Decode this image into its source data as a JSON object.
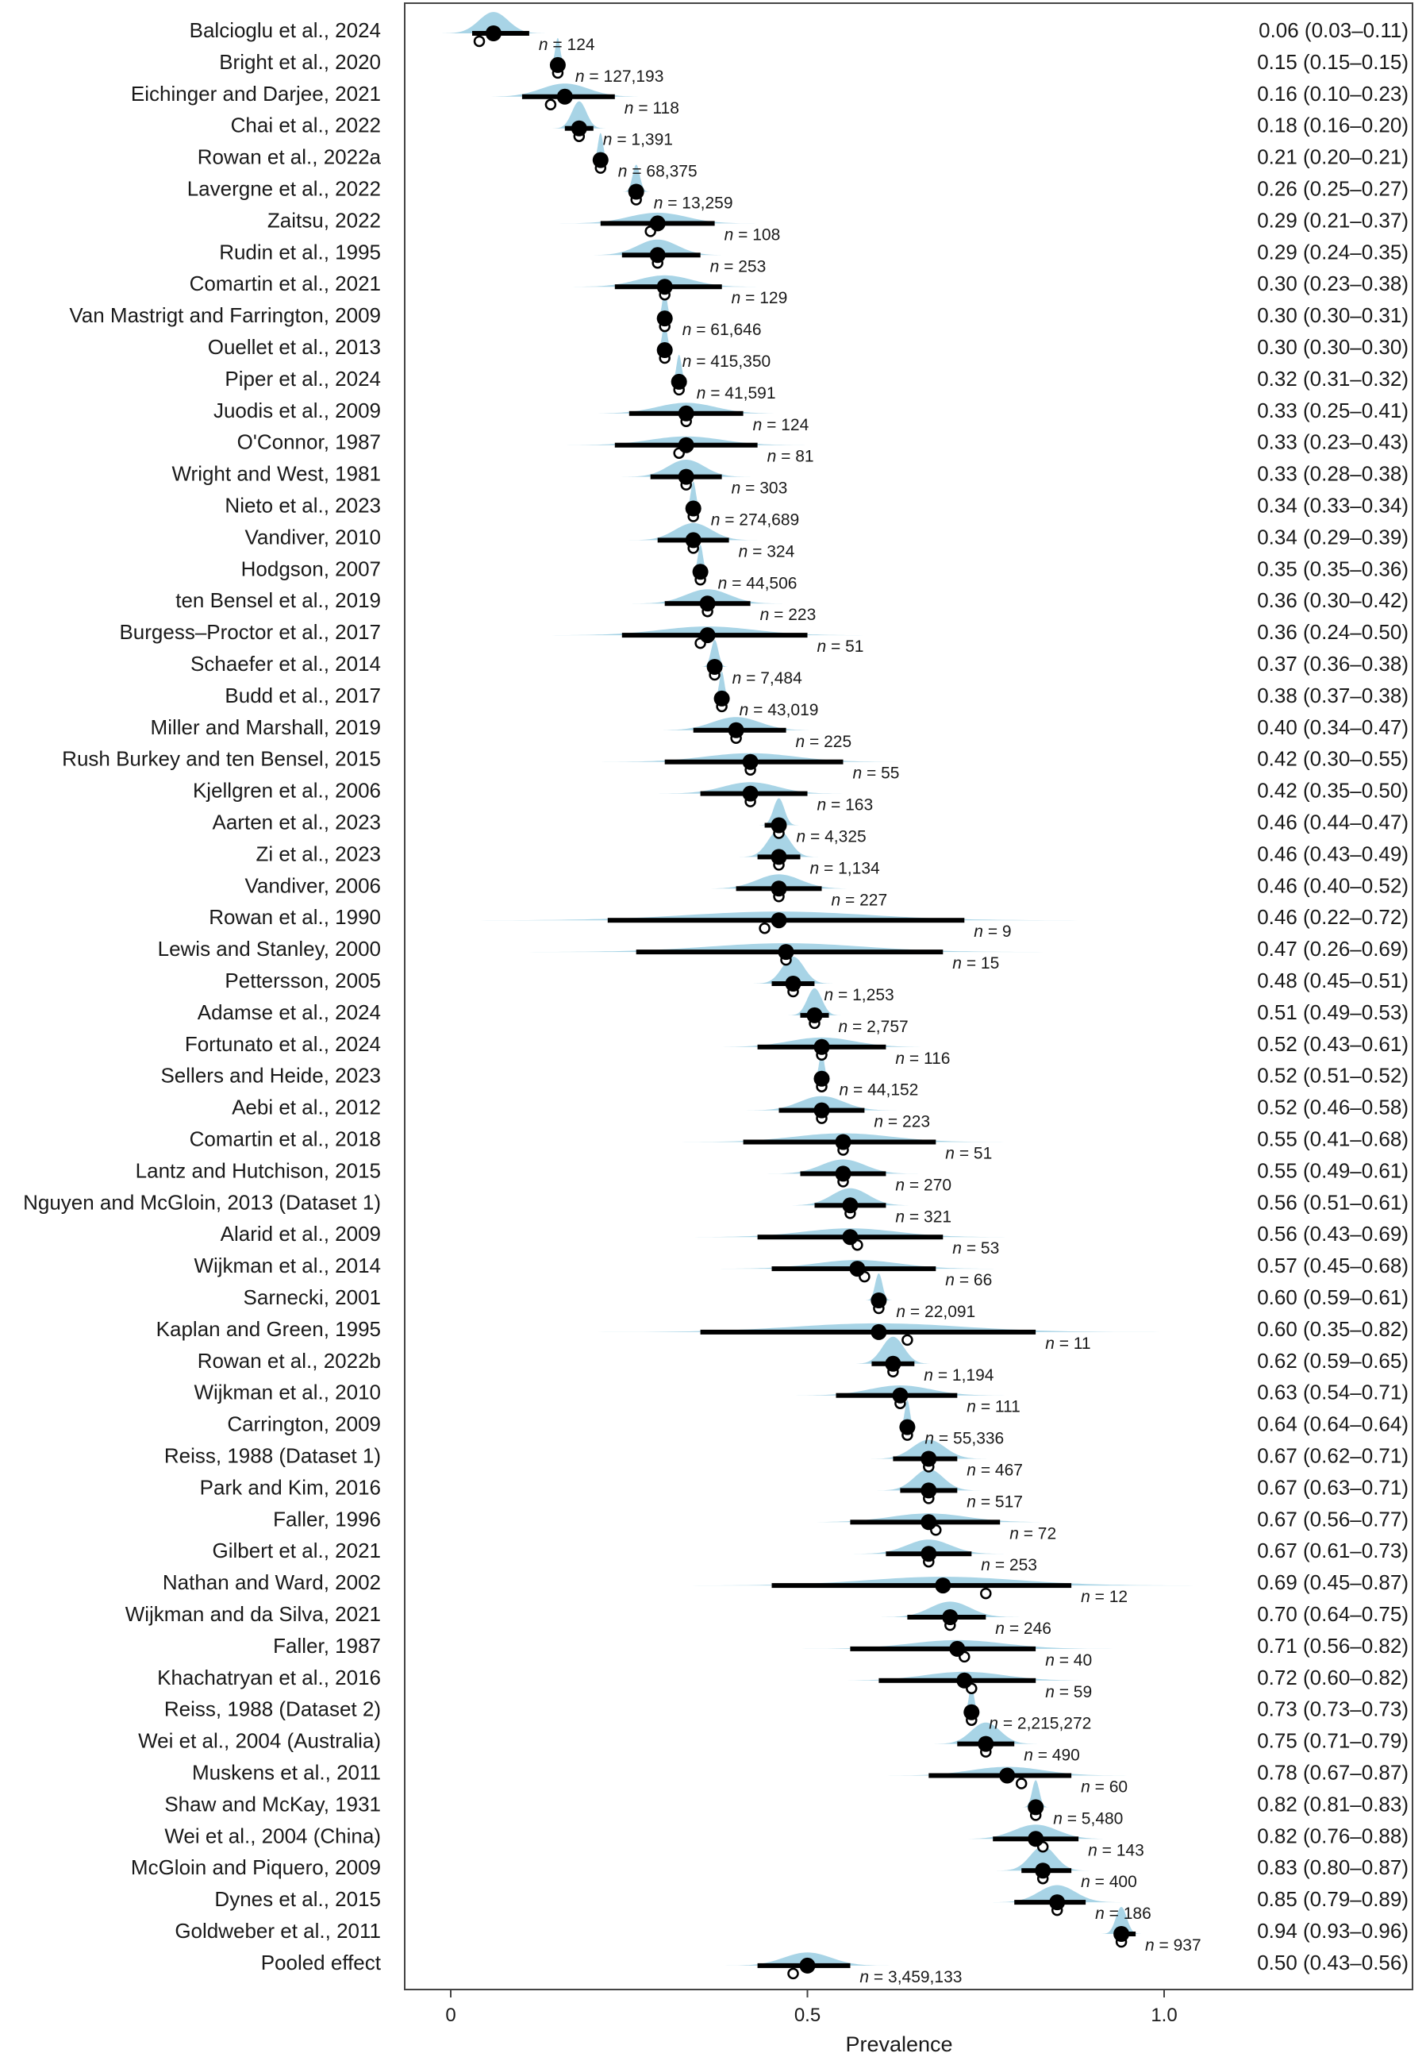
{
  "chart_data": {
    "type": "forest",
    "xlabel": "Prevalence",
    "xlim": [
      0,
      1
    ],
    "xticks": [
      {
        "value": 0,
        "label": "0"
      },
      {
        "value": 0.5,
        "label": "0.5"
      },
      {
        "value": 1.0,
        "label": "1.0"
      }
    ],
    "colors": {
      "density": "#a8d4e6",
      "interval": "#000000",
      "point": "#000000",
      "axis": "#444444"
    },
    "studies": [
      {
        "label": "Balcioglu et al., 2024",
        "estimate": 0.06,
        "lower": 0.03,
        "upper": 0.11,
        "observed": 0.04,
        "n_text": "n = 124",
        "ci_text": "0.06 (0.03–0.11)"
      },
      {
        "label": "Bright et al., 2020",
        "estimate": 0.15,
        "lower": 0.15,
        "upper": 0.15,
        "observed": 0.15,
        "n_text": "n = 127,193",
        "ci_text": "0.15 (0.15–0.15)"
      },
      {
        "label": "Eichinger and Darjee, 2021",
        "estimate": 0.16,
        "lower": 0.1,
        "upper": 0.23,
        "observed": 0.14,
        "n_text": "n = 118",
        "ci_text": "0.16 (0.10–0.23)"
      },
      {
        "label": "Chai et al., 2022",
        "estimate": 0.18,
        "lower": 0.16,
        "upper": 0.2,
        "observed": 0.18,
        "n_text": "n = 1,391",
        "ci_text": "0.18 (0.16–0.20)"
      },
      {
        "label": "Rowan et al., 2022a",
        "estimate": 0.21,
        "lower": 0.2,
        "upper": 0.21,
        "observed": 0.21,
        "n_text": "n = 68,375",
        "ci_text": "0.21 (0.20–0.21)"
      },
      {
        "label": "Lavergne et al., 2022",
        "estimate": 0.26,
        "lower": 0.25,
        "upper": 0.27,
        "observed": 0.26,
        "n_text": "n = 13,259",
        "ci_text": "0.26 (0.25–0.27)"
      },
      {
        "label": "Zaitsu, 2022",
        "estimate": 0.29,
        "lower": 0.21,
        "upper": 0.37,
        "observed": 0.28,
        "n_text": "n = 108",
        "ci_text": "0.29 (0.21–0.37)"
      },
      {
        "label": "Rudin et al., 1995",
        "estimate": 0.29,
        "lower": 0.24,
        "upper": 0.35,
        "observed": 0.29,
        "n_text": "n = 253",
        "ci_text": "0.29 (0.24–0.35)"
      },
      {
        "label": "Comartin et al., 2021",
        "estimate": 0.3,
        "lower": 0.23,
        "upper": 0.38,
        "observed": 0.3,
        "n_text": "n = 129",
        "ci_text": "0.30 (0.23–0.38)"
      },
      {
        "label": "Van Mastrigt and Farrington, 2009",
        "estimate": 0.3,
        "lower": 0.3,
        "upper": 0.31,
        "observed": 0.3,
        "n_text": "n = 61,646",
        "ci_text": "0.30 (0.30–0.31)"
      },
      {
        "label": "Ouellet et al., 2013",
        "estimate": 0.3,
        "lower": 0.3,
        "upper": 0.3,
        "observed": 0.3,
        "n_text": "n = 415,350",
        "ci_text": "0.30 (0.30–0.30)"
      },
      {
        "label": "Piper et al., 2024",
        "estimate": 0.32,
        "lower": 0.31,
        "upper": 0.32,
        "observed": 0.32,
        "n_text": "n = 41,591",
        "ci_text": "0.32 (0.31–0.32)"
      },
      {
        "label": "Juodis et al., 2009",
        "estimate": 0.33,
        "lower": 0.25,
        "upper": 0.41,
        "observed": 0.33,
        "n_text": "n = 124",
        "ci_text": "0.33 (0.25–0.41)"
      },
      {
        "label": "O'Connor, 1987",
        "estimate": 0.33,
        "lower": 0.23,
        "upper": 0.43,
        "observed": 0.32,
        "n_text": "n = 81",
        "ci_text": "0.33 (0.23–0.43)"
      },
      {
        "label": "Wright and West, 1981",
        "estimate": 0.33,
        "lower": 0.28,
        "upper": 0.38,
        "observed": 0.33,
        "n_text": "n = 303",
        "ci_text": "0.33 (0.28–0.38)"
      },
      {
        "label": "Nieto et al., 2023",
        "estimate": 0.34,
        "lower": 0.33,
        "upper": 0.34,
        "observed": 0.34,
        "n_text": "n = 274,689",
        "ci_text": "0.34 (0.33–0.34)"
      },
      {
        "label": "Vandiver, 2010",
        "estimate": 0.34,
        "lower": 0.29,
        "upper": 0.39,
        "observed": 0.34,
        "n_text": "n = 324",
        "ci_text": "0.34 (0.29–0.39)"
      },
      {
        "label": "Hodgson, 2007",
        "estimate": 0.35,
        "lower": 0.35,
        "upper": 0.36,
        "observed": 0.35,
        "n_text": "n = 44,506",
        "ci_text": "0.35 (0.35–0.36)"
      },
      {
        "label": "ten Bensel et al., 2019",
        "estimate": 0.36,
        "lower": 0.3,
        "upper": 0.42,
        "observed": 0.36,
        "n_text": "n = 223",
        "ci_text": "0.36 (0.30–0.42)"
      },
      {
        "label": "Burgess–Proctor et al., 2017",
        "estimate": 0.36,
        "lower": 0.24,
        "upper": 0.5,
        "observed": 0.35,
        "n_text": "n = 51",
        "ci_text": "0.36 (0.24–0.50)"
      },
      {
        "label": "Schaefer et al., 2014",
        "estimate": 0.37,
        "lower": 0.36,
        "upper": 0.38,
        "observed": 0.37,
        "n_text": "n = 7,484",
        "ci_text": "0.37 (0.36–0.38)"
      },
      {
        "label": "Budd et al., 2017",
        "estimate": 0.38,
        "lower": 0.37,
        "upper": 0.38,
        "observed": 0.38,
        "n_text": "n = 43,019",
        "ci_text": "0.38 (0.37–0.38)"
      },
      {
        "label": "Miller and Marshall, 2019",
        "estimate": 0.4,
        "lower": 0.34,
        "upper": 0.47,
        "observed": 0.4,
        "n_text": "n = 225",
        "ci_text": "0.40 (0.34–0.47)"
      },
      {
        "label": "Rush Burkey and ten Bensel, 2015",
        "estimate": 0.42,
        "lower": 0.3,
        "upper": 0.55,
        "observed": 0.42,
        "n_text": "n = 55",
        "ci_text": "0.42 (0.30–0.55)"
      },
      {
        "label": "Kjellgren et al., 2006",
        "estimate": 0.42,
        "lower": 0.35,
        "upper": 0.5,
        "observed": 0.42,
        "n_text": "n = 163",
        "ci_text": "0.42 (0.35–0.50)"
      },
      {
        "label": "Aarten et al., 2023",
        "estimate": 0.46,
        "lower": 0.44,
        "upper": 0.47,
        "observed": 0.46,
        "n_text": "n = 4,325",
        "ci_text": "0.46 (0.44–0.47)"
      },
      {
        "label": "Zi et al., 2023",
        "estimate": 0.46,
        "lower": 0.43,
        "upper": 0.49,
        "observed": 0.46,
        "n_text": "n = 1,134",
        "ci_text": "0.46 (0.43–0.49)"
      },
      {
        "label": "Vandiver, 2006",
        "estimate": 0.46,
        "lower": 0.4,
        "upper": 0.52,
        "observed": 0.46,
        "n_text": "n = 227",
        "ci_text": "0.46 (0.40–0.52)"
      },
      {
        "label": "Rowan et al., 1990",
        "estimate": 0.46,
        "lower": 0.22,
        "upper": 0.72,
        "observed": 0.44,
        "n_text": "n = 9",
        "ci_text": "0.46 (0.22–0.72)"
      },
      {
        "label": "Lewis and Stanley, 2000",
        "estimate": 0.47,
        "lower": 0.26,
        "upper": 0.69,
        "observed": 0.47,
        "n_text": "n = 15",
        "ci_text": "0.47 (0.26–0.69)"
      },
      {
        "label": "Pettersson, 2005",
        "estimate": 0.48,
        "lower": 0.45,
        "upper": 0.51,
        "observed": 0.48,
        "n_text": "n = 1,253",
        "ci_text": "0.48 (0.45–0.51)"
      },
      {
        "label": "Adamse et al., 2024",
        "estimate": 0.51,
        "lower": 0.49,
        "upper": 0.53,
        "observed": 0.51,
        "n_text": "n = 2,757",
        "ci_text": "0.51 (0.49–0.53)"
      },
      {
        "label": "Fortunato et al., 2024",
        "estimate": 0.52,
        "lower": 0.43,
        "upper": 0.61,
        "observed": 0.52,
        "n_text": "n = 116",
        "ci_text": "0.52 (0.43–0.61)"
      },
      {
        "label": "Sellers and Heide, 2023",
        "estimate": 0.52,
        "lower": 0.51,
        "upper": 0.52,
        "observed": 0.52,
        "n_text": "n = 44,152",
        "ci_text": "0.52 (0.51–0.52)"
      },
      {
        "label": "Aebi et al., 2012",
        "estimate": 0.52,
        "lower": 0.46,
        "upper": 0.58,
        "observed": 0.52,
        "n_text": "n = 223",
        "ci_text": "0.52 (0.46–0.58)"
      },
      {
        "label": "Comartin et al., 2018",
        "estimate": 0.55,
        "lower": 0.41,
        "upper": 0.68,
        "observed": 0.55,
        "n_text": "n = 51",
        "ci_text": "0.55 (0.41–0.68)"
      },
      {
        "label": "Lantz and Hutchison, 2015",
        "estimate": 0.55,
        "lower": 0.49,
        "upper": 0.61,
        "observed": 0.55,
        "n_text": "n = 270",
        "ci_text": "0.55 (0.49–0.61)"
      },
      {
        "label": "Nguyen and McGloin, 2013 (Dataset 1)",
        "estimate": 0.56,
        "lower": 0.51,
        "upper": 0.61,
        "observed": 0.56,
        "n_text": "n = 321",
        "ci_text": "0.56 (0.51–0.61)"
      },
      {
        "label": "Alarid et al., 2009",
        "estimate": 0.56,
        "lower": 0.43,
        "upper": 0.69,
        "observed": 0.57,
        "n_text": "n = 53",
        "ci_text": "0.56 (0.43–0.69)"
      },
      {
        "label": "Wijkman et al., 2014",
        "estimate": 0.57,
        "lower": 0.45,
        "upper": 0.68,
        "observed": 0.58,
        "n_text": "n = 66",
        "ci_text": "0.57 (0.45–0.68)"
      },
      {
        "label": "Sarnecki, 2001",
        "estimate": 0.6,
        "lower": 0.59,
        "upper": 0.61,
        "observed": 0.6,
        "n_text": "n = 22,091",
        "ci_text": "0.60 (0.59–0.61)"
      },
      {
        "label": "Kaplan and Green, 1995",
        "estimate": 0.6,
        "lower": 0.35,
        "upper": 0.82,
        "observed": 0.64,
        "n_text": "n = 11",
        "ci_text": "0.60 (0.35–0.82)"
      },
      {
        "label": "Rowan et al., 2022b",
        "estimate": 0.62,
        "lower": 0.59,
        "upper": 0.65,
        "observed": 0.62,
        "n_text": "n = 1,194",
        "ci_text": "0.62 (0.59–0.65)"
      },
      {
        "label": "Wijkman et al., 2010",
        "estimate": 0.63,
        "lower": 0.54,
        "upper": 0.71,
        "observed": 0.63,
        "n_text": "n = 111",
        "ci_text": "0.63 (0.54–0.71)"
      },
      {
        "label": "Carrington, 2009",
        "estimate": 0.64,
        "lower": 0.64,
        "upper": 0.64,
        "observed": 0.64,
        "n_text": "n = 55,336",
        "ci_text": "0.64 (0.64–0.64)"
      },
      {
        "label": "Reiss, 1988 (Dataset 1)",
        "estimate": 0.67,
        "lower": 0.62,
        "upper": 0.71,
        "observed": 0.67,
        "n_text": "n = 467",
        "ci_text": "0.67 (0.62–0.71)"
      },
      {
        "label": "Park and Kim, 2016",
        "estimate": 0.67,
        "lower": 0.63,
        "upper": 0.71,
        "observed": 0.67,
        "n_text": "n = 517",
        "ci_text": "0.67 (0.63–0.71)"
      },
      {
        "label": "Faller, 1996",
        "estimate": 0.67,
        "lower": 0.56,
        "upper": 0.77,
        "observed": 0.68,
        "n_text": "n = 72",
        "ci_text": "0.67 (0.56–0.77)"
      },
      {
        "label": "Gilbert et al., 2021",
        "estimate": 0.67,
        "lower": 0.61,
        "upper": 0.73,
        "observed": 0.67,
        "n_text": "n = 253",
        "ci_text": "0.67 (0.61–0.73)"
      },
      {
        "label": "Nathan and Ward, 2002",
        "estimate": 0.69,
        "lower": 0.45,
        "upper": 0.87,
        "observed": 0.75,
        "n_text": "n = 12",
        "ci_text": "0.69 (0.45–0.87)"
      },
      {
        "label": "Wijkman and da Silva, 2021",
        "estimate": 0.7,
        "lower": 0.64,
        "upper": 0.75,
        "observed": 0.7,
        "n_text": "n = 246",
        "ci_text": "0.70 (0.64–0.75)"
      },
      {
        "label": "Faller, 1987",
        "estimate": 0.71,
        "lower": 0.56,
        "upper": 0.82,
        "observed": 0.72,
        "n_text": "n = 40",
        "ci_text": "0.71 (0.56–0.82)"
      },
      {
        "label": "Khachatryan et al., 2016",
        "estimate": 0.72,
        "lower": 0.6,
        "upper": 0.82,
        "observed": 0.73,
        "n_text": "n = 59",
        "ci_text": "0.72 (0.60–0.82)"
      },
      {
        "label": "Reiss, 1988 (Dataset 2)",
        "estimate": 0.73,
        "lower": 0.73,
        "upper": 0.73,
        "observed": 0.73,
        "n_text": "n = 2,215,272",
        "ci_text": "0.73 (0.73–0.73)"
      },
      {
        "label": "Wei et al., 2004 (Australia)",
        "estimate": 0.75,
        "lower": 0.71,
        "upper": 0.79,
        "observed": 0.75,
        "n_text": "n = 490",
        "ci_text": "0.75 (0.71–0.79)"
      },
      {
        "label": "Muskens et al., 2011",
        "estimate": 0.78,
        "lower": 0.67,
        "upper": 0.87,
        "observed": 0.8,
        "n_text": "n = 60",
        "ci_text": "0.78 (0.67–0.87)"
      },
      {
        "label": "Shaw and McKay, 1931",
        "estimate": 0.82,
        "lower": 0.81,
        "upper": 0.83,
        "observed": 0.82,
        "n_text": "n = 5,480",
        "ci_text": "0.82 (0.81–0.83)"
      },
      {
        "label": "Wei et al., 2004 (China)",
        "estimate": 0.82,
        "lower": 0.76,
        "upper": 0.88,
        "observed": 0.83,
        "n_text": "n = 143",
        "ci_text": "0.82 (0.76–0.88)"
      },
      {
        "label": "McGloin and Piquero, 2009",
        "estimate": 0.83,
        "lower": 0.8,
        "upper": 0.87,
        "observed": 0.83,
        "n_text": "n = 400",
        "ci_text": "0.83 (0.80–0.87)"
      },
      {
        "label": "Dynes et al., 2015",
        "estimate": 0.85,
        "lower": 0.79,
        "upper": 0.89,
        "observed": 0.85,
        "n_text": "n = 186",
        "ci_text": "0.85 (0.79–0.89)"
      },
      {
        "label": "Goldweber et al., 2011",
        "estimate": 0.94,
        "lower": 0.93,
        "upper": 0.96,
        "observed": 0.94,
        "n_text": "n = 937",
        "ci_text": "0.94 (0.93–0.96)"
      },
      {
        "label": "Pooled effect",
        "estimate": 0.5,
        "lower": 0.43,
        "upper": 0.56,
        "observed": 0.48,
        "n_text": "n = 3,459,133",
        "ci_text": "0.50 (0.43–0.56)"
      }
    ]
  }
}
